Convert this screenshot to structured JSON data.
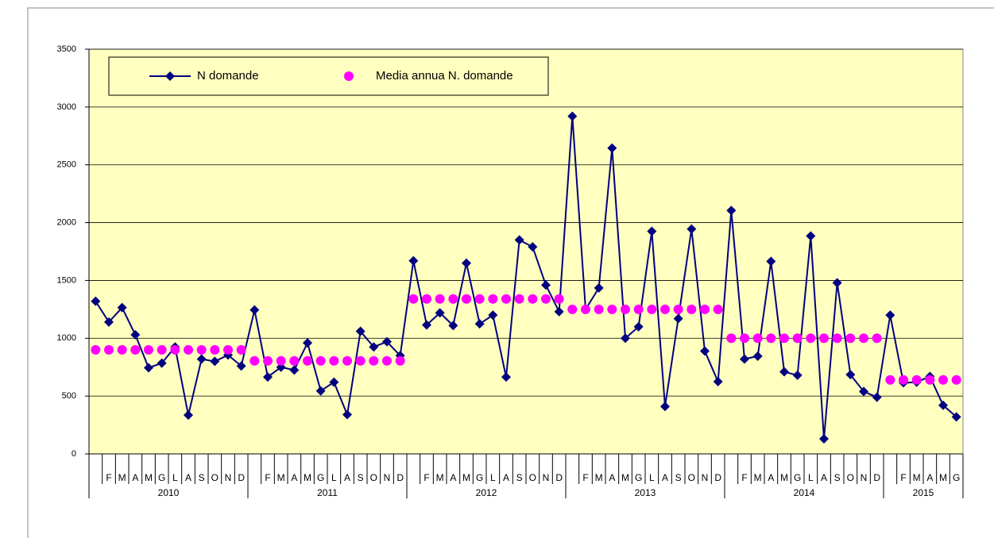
{
  "chart_data": {
    "type": "line",
    "categories": [
      null,
      "F",
      "M",
      "A",
      "M",
      "G",
      "L",
      "A",
      "S",
      "O",
      "N",
      "D",
      null,
      "F",
      "M",
      "A",
      "M",
      "G",
      "L",
      "A",
      "S",
      "O",
      "N",
      "D",
      null,
      "F",
      "M",
      "A",
      "M",
      "G",
      "L",
      "A",
      "S",
      "O",
      "N",
      "D",
      null,
      "F",
      "M",
      "A",
      "M",
      "G",
      "L",
      "A",
      "S",
      "O",
      "N",
      "D",
      null,
      "F",
      "M",
      "A",
      "M",
      "G",
      "L",
      "A",
      "S",
      "O",
      "N",
      "D",
      null,
      "F",
      "M",
      "A",
      "M",
      "G"
    ],
    "years": [
      "2010",
      "2011",
      "2012",
      "2013",
      "2014",
      "2015"
    ],
    "series": [
      {
        "name": "N domande",
        "color": "#000080",
        "marker": "diamond",
        "line": true,
        "values": [
          1320,
          1140,
          1265,
          1030,
          745,
          785,
          925,
          335,
          820,
          800,
          855,
          760,
          1245,
          665,
          750,
          725,
          960,
          545,
          620,
          340,
          1060,
          925,
          970,
          850,
          1670,
          1115,
          1220,
          1110,
          1650,
          1125,
          1200,
          665,
          1850,
          1790,
          1460,
          1230,
          2920,
          1250,
          1435,
          2645,
          1000,
          1100,
          1925,
          410,
          1170,
          1945,
          890,
          625,
          2105,
          820,
          845,
          1665,
          710,
          680,
          1885,
          130,
          1480,
          685,
          540,
          490,
          1200,
          615,
          620,
          670,
          420,
          320
        ]
      },
      {
        "name": "Media annua N. domande",
        "color": "#ff00ff",
        "marker": "circle",
        "line": false,
        "values": [
          900,
          900,
          900,
          900,
          900,
          900,
          900,
          900,
          900,
          900,
          900,
          900,
          805,
          805,
          805,
          805,
          805,
          805,
          805,
          805,
          805,
          805,
          805,
          805,
          1340,
          1340,
          1340,
          1340,
          1340,
          1340,
          1340,
          1340,
          1340,
          1340,
          1340,
          1340,
          1250,
          1250,
          1250,
          1250,
          1250,
          1250,
          1250,
          1250,
          1250,
          1250,
          1250,
          1250,
          1000,
          1000,
          1000,
          1000,
          1000,
          1000,
          1000,
          1000,
          1000,
          1000,
          1000,
          1000,
          640,
          640,
          640,
          640,
          640,
          640
        ]
      }
    ],
    "ylim": [
      0,
      3500
    ],
    "yticks": [
      0,
      500,
      1000,
      1500,
      2000,
      2500,
      3000,
      3500
    ],
    "grid": true,
    "legend": "top-left",
    "plot_background": "#ffffc0"
  }
}
